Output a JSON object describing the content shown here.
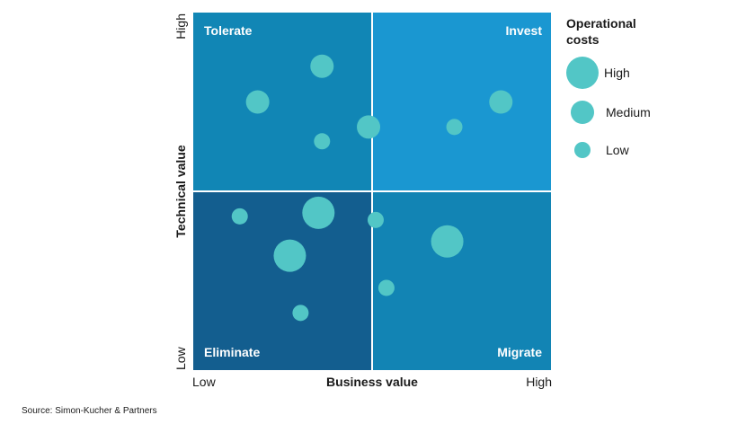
{
  "chart_data": {
    "type": "scatter",
    "xlabel": "Business value",
    "ylabel": "Technical value",
    "x_ticks": {
      "low": "Low",
      "high": "High"
    },
    "y_ticks": {
      "low": "Low",
      "high": "High"
    },
    "xlim": [
      0,
      100
    ],
    "ylim": [
      0,
      100
    ],
    "quadrants": {
      "top_left": "Tolerate",
      "top_right": "Invest",
      "bottom_left": "Eliminate",
      "bottom_right": "Migrate"
    },
    "colors": {
      "top_left": "#1186b5",
      "top_right": "#1a97d1",
      "bottom_left": "#135e8f",
      "bottom_right": "#1284b4",
      "bubble": "#52c6c6",
      "divider": "#ffffff"
    },
    "legend": {
      "title_line1": "Operational",
      "title_line2": "costs",
      "placement": "right",
      "items": [
        {
          "label": "High",
          "size": "high"
        },
        {
          "label": "Medium",
          "size": "medium"
        },
        {
          "label": "Low",
          "size": "low"
        }
      ]
    },
    "points": [
      {
        "x": 36,
        "y": 85,
        "cost": "medium"
      },
      {
        "x": 18,
        "y": 75,
        "cost": "medium"
      },
      {
        "x": 36,
        "y": 64,
        "cost": "low"
      },
      {
        "x": 49,
        "y": 68,
        "cost": "low_medium"
      },
      {
        "x": 73,
        "y": 68,
        "cost": "low"
      },
      {
        "x": 86,
        "y": 75,
        "cost": "medium"
      },
      {
        "x": 13,
        "y": 43,
        "cost": "low"
      },
      {
        "x": 35,
        "y": 44,
        "cost": "high"
      },
      {
        "x": 51,
        "y": 42,
        "cost": "low"
      },
      {
        "x": 27,
        "y": 32,
        "cost": "high"
      },
      {
        "x": 71,
        "y": 36,
        "cost": "high"
      },
      {
        "x": 54,
        "y": 23,
        "cost": "low"
      },
      {
        "x": 30,
        "y": 16,
        "cost": "low"
      }
    ]
  },
  "source": "Source: Simon-Kucher & Partners"
}
